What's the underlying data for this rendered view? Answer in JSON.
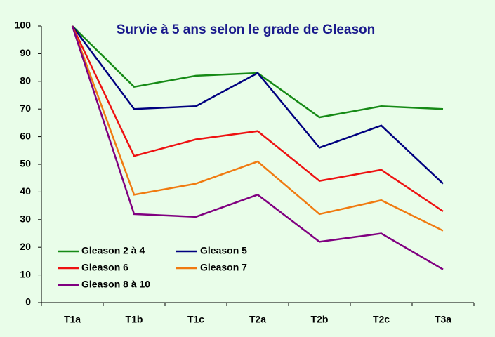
{
  "chart_data": {
    "type": "line",
    "title": "Survie à 5 ans selon le grade de Gleason",
    "categories": [
      "T1a",
      "T1b",
      "T1c",
      "T2a",
      "T2b",
      "T2c",
      "T3a"
    ],
    "series": [
      {
        "name": "Gleason 2 à 4",
        "color": "#168a16",
        "values": [
          100,
          78,
          82,
          83,
          67,
          71,
          70
        ]
      },
      {
        "name": "Gleason 5",
        "color": "#00007f",
        "values": [
          100,
          70,
          71,
          83,
          56,
          64,
          43
        ]
      },
      {
        "name": "Gleason 6",
        "color": "#ee1111",
        "values": [
          100,
          53,
          59,
          62,
          44,
          48,
          33
        ]
      },
      {
        "name": "Gleason 7",
        "color": "#f07a10",
        "values": [
          100,
          39,
          43,
          51,
          32,
          37,
          26
        ]
      },
      {
        "name": "Gleason 8 à 10",
        "color": "#800080",
        "values": [
          100,
          32,
          31,
          39,
          22,
          25,
          12
        ]
      }
    ],
    "ylim": [
      0,
      100
    ],
    "yticks": [
      0,
      10,
      20,
      30,
      40,
      50,
      60,
      70,
      80,
      90,
      100
    ],
    "grid": false,
    "legend": "lower left"
  }
}
